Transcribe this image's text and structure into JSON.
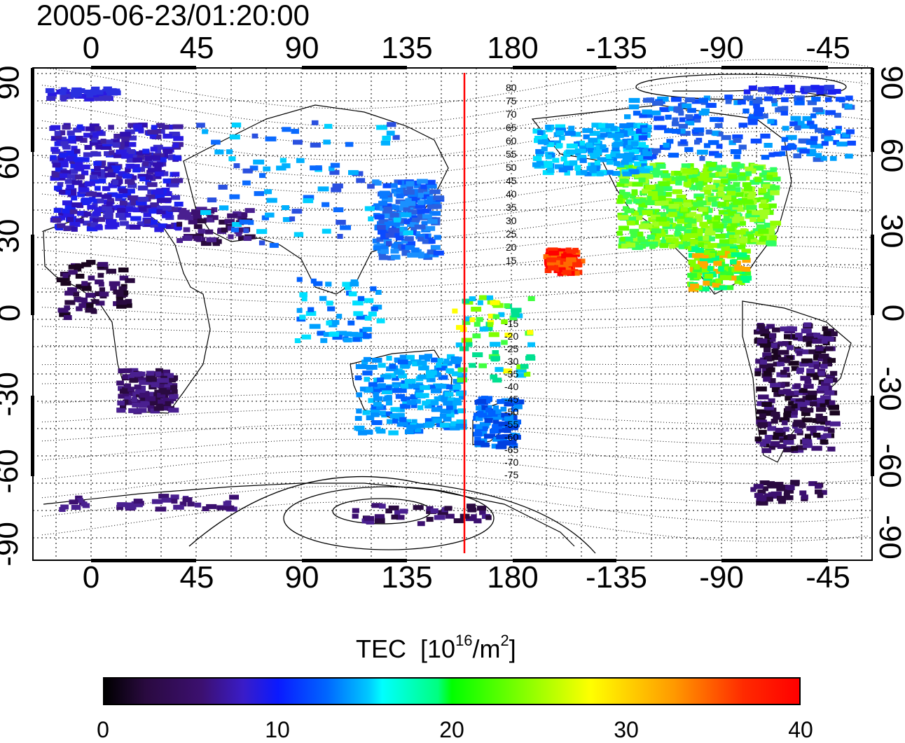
{
  "title": "2005-06-23/01:20:00",
  "map": {
    "lon_ticks": [
      "0",
      "45",
      "90",
      "135",
      "180",
      "-135",
      "-90",
      "-45"
    ],
    "lat_ticks": [
      "90",
      "60",
      "30",
      "0",
      "-30",
      "-60",
      "-90"
    ],
    "contour_labels_north": [
      "80",
      "75",
      "70",
      "65",
      "60",
      "55",
      "50",
      "45",
      "40",
      "35",
      "30",
      "25",
      "20",
      "15"
    ],
    "contour_labels_south": [
      "-15",
      "-20",
      "-25",
      "-30",
      "-35",
      "-40",
      "-45",
      "-50",
      "-55",
      "-60",
      "-65",
      "-70",
      "-75"
    ],
    "meridian_marker_color": "#ff0000"
  },
  "colorbar": {
    "label": "TEC",
    "unit_prefix": "[10",
    "unit_exp": "16",
    "unit_mid": "/m",
    "unit_exp2": "2",
    "unit_suffix": "]",
    "ticks": [
      "0",
      "10",
      "20",
      "30",
      "40"
    ],
    "range": [
      0,
      40
    ],
    "colors": [
      "#000000",
      "#3c1070",
      "#0a1aff",
      "#00ffff",
      "#00ff00",
      "#ffff00",
      "#ff0000"
    ]
  }
}
